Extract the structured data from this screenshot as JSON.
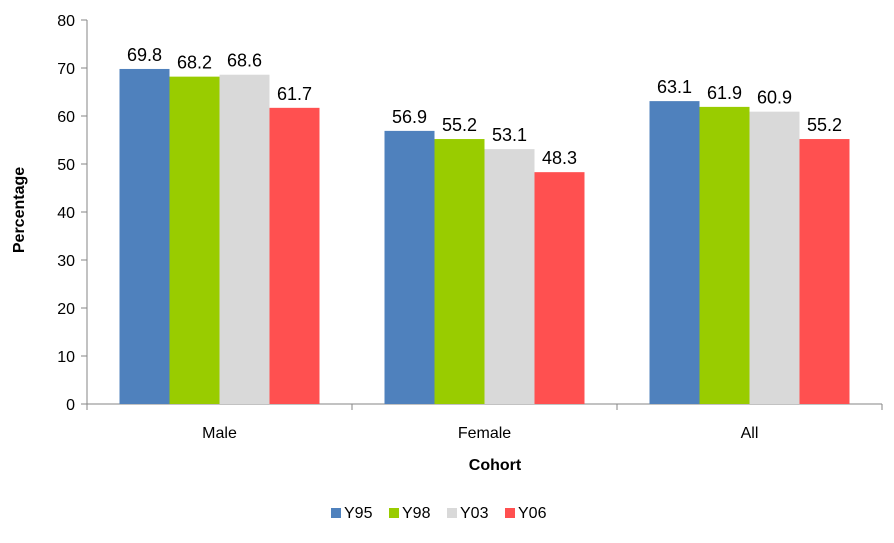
{
  "chart_data": {
    "type": "bar",
    "categories": [
      "Male",
      "Female",
      "All"
    ],
    "series": [
      {
        "name": "Y95",
        "color": "#4f81bd",
        "values": [
          69.8,
          56.9,
          63.1
        ]
      },
      {
        "name": "Y98",
        "color": "#99cc00",
        "values": [
          68.2,
          55.2,
          61.9
        ]
      },
      {
        "name": "Y03",
        "color": "#d9d9d9",
        "values": [
          68.6,
          53.1,
          60.9
        ]
      },
      {
        "name": "Y06",
        "color": "#ff5050",
        "values": [
          61.7,
          48.3,
          55.2
        ]
      }
    ],
    "xlabel": "Cohort",
    "ylabel": "Percentage",
    "ylim": [
      0,
      80
    ],
    "yticks": [
      0,
      10,
      20,
      30,
      40,
      50,
      60,
      70,
      80
    ],
    "grid": false,
    "legend_position": "bottom",
    "data_labels": true
  }
}
